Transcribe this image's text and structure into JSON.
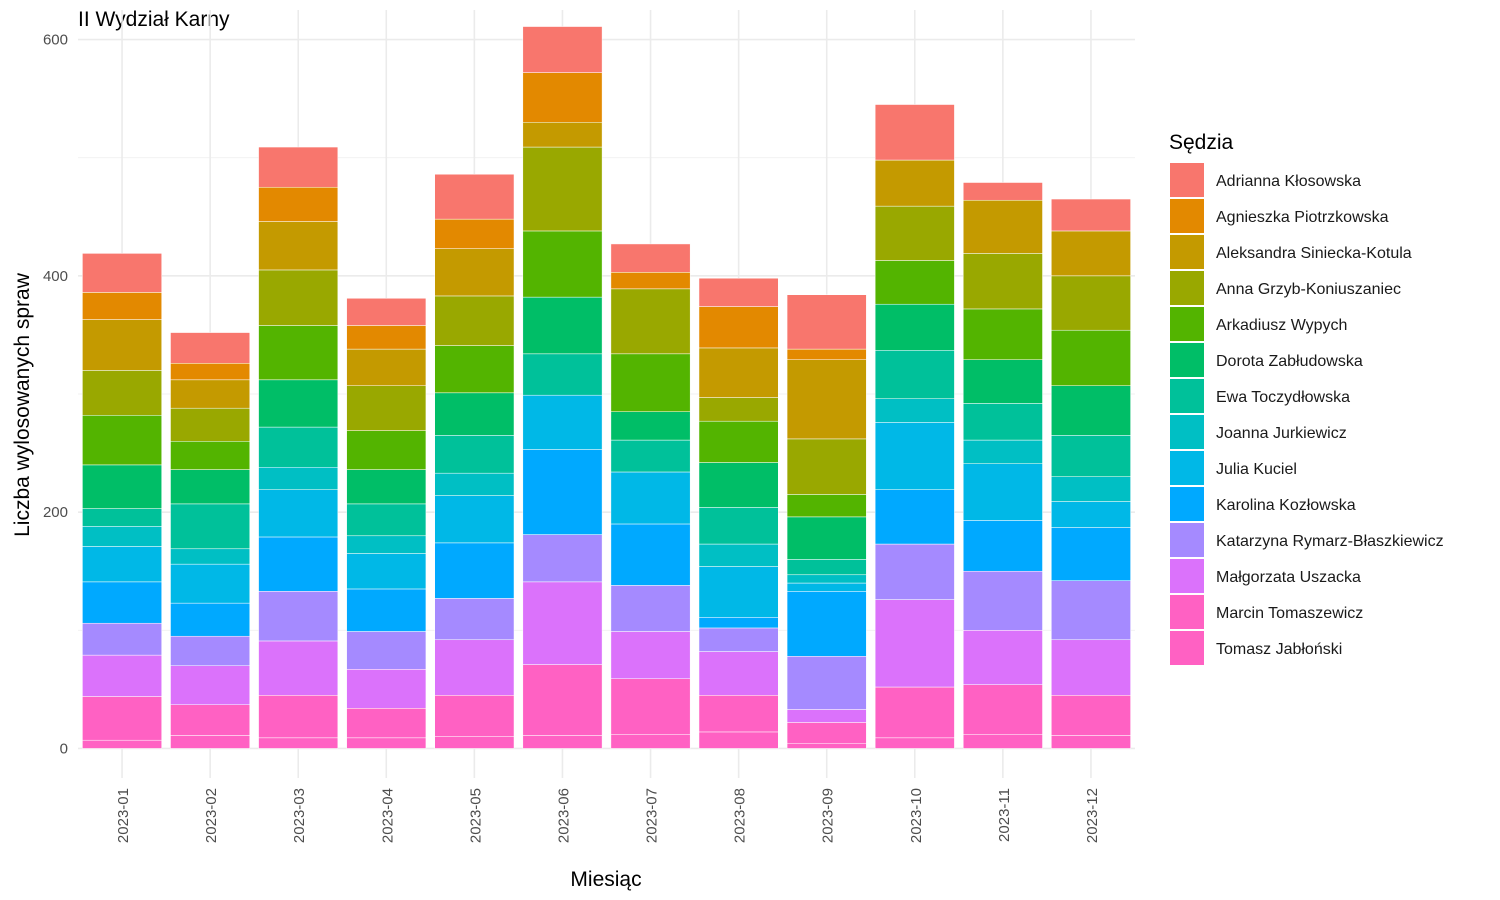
{
  "chart_data": {
    "type": "bar",
    "stacked": true,
    "title": "II Wydział Karny",
    "xlabel": "Miesiąc",
    "ylabel": "Liczba wylosowanych spraw",
    "ylim": [
      -25,
      625
    ],
    "yticks": [
      0,
      200,
      400,
      600
    ],
    "grid": true,
    "legend_title": "Sędzia",
    "legend_position": "right",
    "categories": [
      "2023-01",
      "2023-02",
      "2023-03",
      "2023-04",
      "2023-05",
      "2023-06",
      "2023-07",
      "2023-08",
      "2023-09",
      "2023-10",
      "2023-11",
      "2023-12"
    ],
    "series": [
      {
        "name": "Tomasz Jabłoński",
        "color": "#FF61C3",
        "values": [
          7,
          11,
          9,
          9,
          10,
          11,
          12,
          14,
          4,
          9,
          12,
          11
        ]
      },
      {
        "name": "Marcin Tomaszewicz",
        "color": "#FF61C3",
        "values": [
          37,
          26,
          36,
          25,
          35,
          60,
          47,
          31,
          18,
          43,
          42,
          34
        ]
      },
      {
        "name": "Małgorzata Uszacka",
        "color": "#DB72FB",
        "values": [
          35,
          33,
          46,
          33,
          47,
          70,
          40,
          37,
          11,
          74,
          46,
          47
        ]
      },
      {
        "name": "Katarzyna Rymarz-Błaszkiewicz",
        "color": "#A58AFF",
        "values": [
          27,
          25,
          42,
          32,
          35,
          40,
          39,
          20,
          45,
          47,
          50,
          50
        ]
      },
      {
        "name": "Karolina Kozłowska",
        "color": "#00A9FF",
        "values": [
          35,
          28,
          46,
          36,
          47,
          72,
          52,
          9,
          55,
          46,
          43,
          45
        ]
      },
      {
        "name": "Julia Kuciel",
        "color": "#00B8E7",
        "values": [
          30,
          33,
          40,
          30,
          40,
          46,
          44,
          43,
          7,
          57,
          48,
          22
        ]
      },
      {
        "name": "Joanna Jurkiewicz",
        "color": "#00BFC4",
        "values": [
          17,
          13,
          19,
          15,
          19,
          0,
          0,
          19,
          7,
          20,
          20,
          21
        ]
      },
      {
        "name": "Ewa Toczydłowska",
        "color": "#00C19A",
        "values": [
          15,
          38,
          34,
          27,
          32,
          35,
          27,
          31,
          13,
          41,
          31,
          35
        ]
      },
      {
        "name": "Dorota Zabłudowska",
        "color": "#00BE67",
        "values": [
          37,
          29,
          40,
          29,
          36,
          48,
          24,
          38,
          36,
          39,
          37,
          42
        ]
      },
      {
        "name": "Arkadiusz Wypych",
        "color": "#53B400",
        "values": [
          42,
          24,
          46,
          33,
          40,
          56,
          49,
          35,
          19,
          37,
          43,
          47
        ]
      },
      {
        "name": "Anna Grzyb-Koniuszaniec",
        "color": "#99A800",
        "values": [
          38,
          28,
          47,
          38,
          42,
          71,
          55,
          20,
          47,
          46,
          47,
          46
        ]
      },
      {
        "name": "Aleksandra Siniecka-Kotula",
        "color": "#C49A00",
        "values": [
          43,
          24,
          41,
          31,
          40,
          21,
          0,
          42,
          67,
          39,
          45,
          38
        ]
      },
      {
        "name": "Agnieszka Piotrzkowska",
        "color": "#E38900",
        "values": [
          23,
          14,
          29,
          20,
          25,
          42,
          14,
          35,
          9,
          0,
          0,
          0
        ]
      },
      {
        "name": "Adrianna Kłosowska",
        "color": "#F8766D",
        "values": [
          33,
          26,
          34,
          23,
          38,
          39,
          24,
          24,
          46,
          47,
          15,
          27
        ]
      }
    ],
    "legend_order": [
      "Adrianna Kłosowska",
      "Agnieszka Piotrzkowska",
      "Aleksandra Siniecka-Kotula",
      "Anna Grzyb-Koniuszaniec",
      "Arkadiusz Wypych",
      "Dorota Zabłudowska",
      "Ewa Toczydłowska",
      "Joanna Jurkiewicz",
      "Julia Kuciel",
      "Karolina Kozłowska",
      "Katarzyna Rymarz-Błaszkiewicz",
      "Małgorzata Uszacka",
      "Marcin Tomaszewicz",
      "Tomasz Jabłoński"
    ]
  }
}
